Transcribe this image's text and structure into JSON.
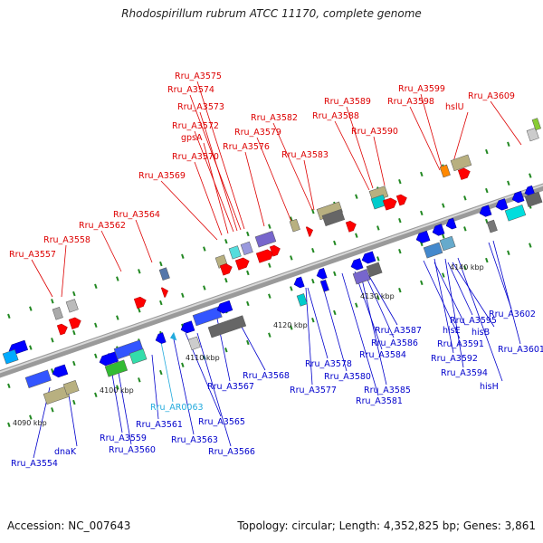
{
  "title": "Rhodospirillum rubrum ATCC 11170, complete genome",
  "footer": {
    "accession": "Accession: NC_007643",
    "topology": "Topology: circular; Length: 4,352,825 bp; Genes: 3,861"
  },
  "colors": {
    "forward": "#ff0000",
    "reverse": "#0000ff",
    "rna": "#22aadd",
    "backbone": "#888888",
    "tick": "#228822"
  },
  "kbp_labels": [
    "4090 kbp",
    "4100 kbp",
    "4110 kbp",
    "4120 kbp",
    "4130 kbp",
    "4140 kbp"
  ],
  "top_labels": [
    "Rru_A3557",
    "Rru_A3558",
    "Rru_A3562",
    "Rru_A3564",
    "Rru_A3569",
    "Rru_A3570",
    "gpsA",
    "Rru_A3572",
    "Rru_A3573",
    "Rru_A3574",
    "Rru_A3575",
    "Rru_A3576",
    "Rru_A3579",
    "Rru_A3582",
    "Rru_A3583",
    "Rru_A3588",
    "Rru_A3589",
    "Rru_A3590",
    "Rru_A3598",
    "Rru_A3599",
    "hslU",
    "Rru_A3609"
  ],
  "bottom_labels": [
    "Rru_A3554",
    "dnaK",
    "Rru_A3559",
    "Rru_A3560",
    "Rru_A3561",
    "Rru_AR0063",
    "Rru_A3563",
    "Rru_A3565",
    "Rru_A3566",
    "Rru_A3567",
    "Rru_A3568",
    "Rru_A3577",
    "Rru_A3578",
    "Rru_A3580",
    "Rru_A3581",
    "Rru_A3584",
    "Rru_A3585",
    "Rru_A3586",
    "Rru_A3587",
    "Rru_A3591",
    "Rru_A3592",
    "Rru_A3594",
    "hisE",
    "Rru_A3595",
    "hisB",
    "hisH",
    "Rru_A3602",
    "Rru_A3601"
  ]
}
